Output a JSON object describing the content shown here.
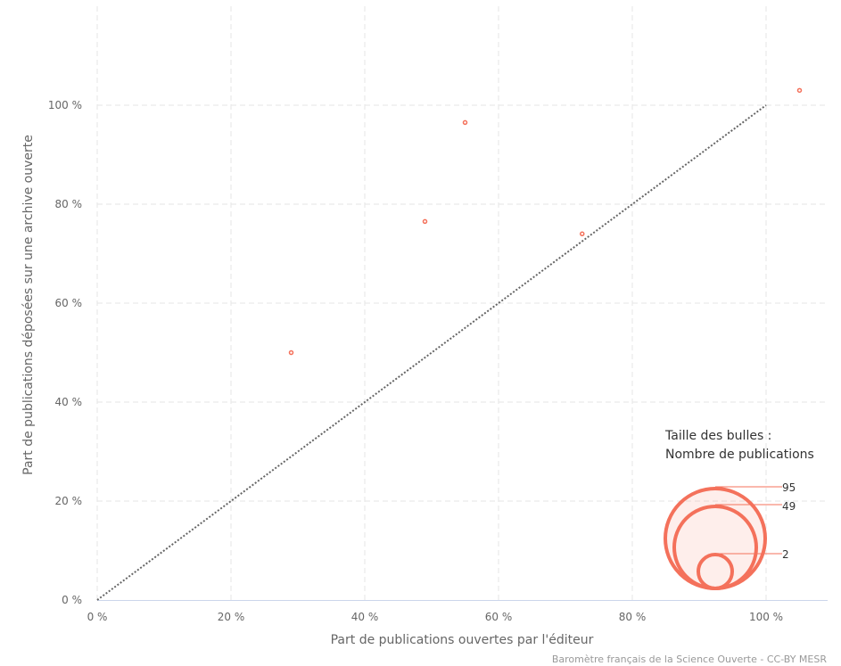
{
  "chart_data": {
    "type": "scatter",
    "xlabel": "Part de publications ouvertes par l'éditeur",
    "ylabel": "Part de publications déposées sur une archive ouverte",
    "xlim": [
      0,
      108
    ],
    "ylim": [
      0,
      115
    ],
    "x_ticks": [
      0,
      20,
      40,
      60,
      80,
      100
    ],
    "y_ticks": [
      0,
      20,
      40,
      60,
      80,
      100
    ],
    "x_tick_labels": [
      "0 %",
      "20 %",
      "40 %",
      "60 %",
      "80 %",
      "100 %"
    ],
    "y_tick_labels": [
      "0 %",
      "20 %",
      "40 %",
      "60 %",
      "80 %",
      "100 %"
    ],
    "grid": true,
    "reference_line": {
      "from": [
        0,
        0
      ],
      "to": [
        100,
        100
      ],
      "style": "dotted"
    },
    "points": [
      {
        "x": 29,
        "y": 50
      },
      {
        "x": 49,
        "y": 76.5
      },
      {
        "x": 55,
        "y": 96.5
      },
      {
        "x": 72.5,
        "y": 74
      },
      {
        "x": 105,
        "y": 103
      }
    ],
    "colors": {
      "point": "#f4715b",
      "reference": "#666666",
      "grid": "#e6e6e6",
      "axis": "#ccd6eb"
    },
    "legend": {
      "title_line1": "Taille des bulles :",
      "title_line2": "Nombre de publications",
      "position": "bottom-right",
      "sizes": [
        "95",
        "49",
        "2"
      ]
    },
    "credits": "Baromètre français de la Science Ouverte - CC-BY MESR"
  }
}
